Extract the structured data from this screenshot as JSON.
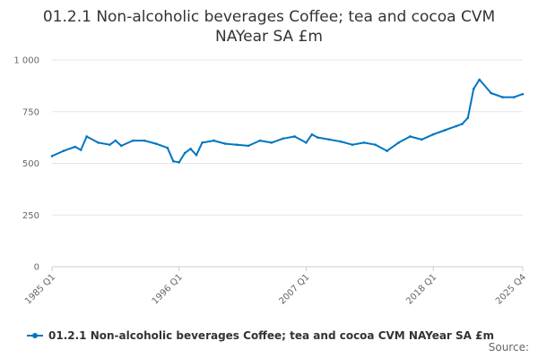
{
  "chart_data": {
    "type": "line",
    "title": "01.2.1 Non-alcoholic beverages Coffee; tea and cocoa CVM NAYear SA £m",
    "xlabel": "",
    "ylabel": "",
    "ylim": [
      0,
      1000
    ],
    "yticks": [
      "0",
      "250",
      "500",
      "750",
      "1 000"
    ],
    "xticks": [
      "1985 Q1",
      "1996 Q1",
      "2007 Q1",
      "2018 Q1",
      "2025 Q4"
    ],
    "grid": true,
    "legend_position": "bottom",
    "series": [
      {
        "name": "01.2.1 Non-alcoholic beverages Coffee; tea and cocoa CVM NAYear SA £m",
        "color": "#0075c2",
        "x": [
          1985.0,
          1986.0,
          1987.0,
          1987.5,
          1988.0,
          1989.0,
          1990.0,
          1990.5,
          1991.0,
          1992.0,
          1993.0,
          1994.0,
          1995.0,
          1995.5,
          1996.0,
          1996.5,
          1997.0,
          1997.5,
          1998.0,
          1999.0,
          2000.0,
          2001.0,
          2002.0,
          2003.0,
          2004.0,
          2005.0,
          2006.0,
          2007.0,
          2007.5,
          2008.0,
          2009.0,
          2010.0,
          2011.0,
          2012.0,
          2013.0,
          2014.0,
          2015.0,
          2016.0,
          2017.0,
          2018.0,
          2019.0,
          2020.0,
          2020.5,
          2021.0,
          2021.5,
          2022.0,
          2023.0,
          2024.0,
          2025.0,
          2025.75
        ],
        "values": [
          535,
          560,
          580,
          565,
          630,
          600,
          590,
          610,
          585,
          610,
          610,
          595,
          575,
          510,
          505,
          550,
          570,
          540,
          600,
          610,
          595,
          590,
          585,
          610,
          600,
          620,
          630,
          600,
          640,
          625,
          615,
          605,
          590,
          600,
          590,
          560,
          600,
          630,
          615,
          640,
          660,
          680,
          690,
          720,
          860,
          905,
          840,
          820,
          820,
          835
        ]
      }
    ]
  },
  "legend": {
    "label": "01.2.1 Non-alcoholic beverages Coffee; tea and cocoa CVM NAYear SA £m"
  },
  "source": {
    "label": "Source:"
  }
}
